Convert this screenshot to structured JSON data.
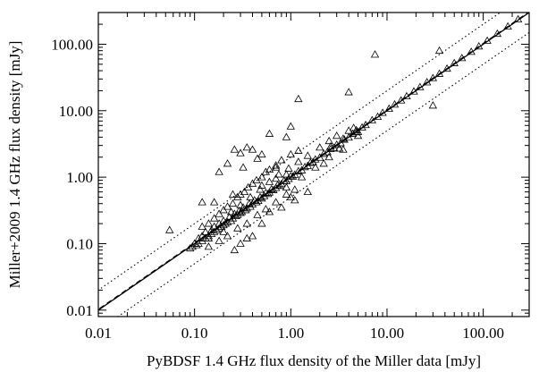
{
  "chart_data": {
    "type": "scatter",
    "title": "",
    "xlabel": "PyBDSF 1.4 GHz flux density of the Miller data [mJy]",
    "ylabel": "Miller+2009 1.4 GHz flux density [mJy]",
    "xscale": "log",
    "yscale": "log",
    "xlim": [
      0.01,
      300
    ],
    "ylim": [
      0.008,
      300
    ],
    "xticks": [
      0.01,
      0.1,
      1,
      10,
      100
    ],
    "xtick_labels": [
      "0.01",
      "0.10",
      "1.00",
      "10.00",
      "100.00"
    ],
    "yticks": [
      0.01,
      0.1,
      1,
      10,
      100
    ],
    "ytick_labels": [
      "0.01",
      "0.10",
      "1.00",
      "10.00",
      "100.00"
    ],
    "grid": false,
    "marker": "open-triangle",
    "reference_lines": [
      {
        "style": "solid",
        "relation": "y = x"
      },
      {
        "style": "dashed",
        "relation": "y = 1.03x"
      },
      {
        "style": "dotted",
        "relation": "y = 2x"
      },
      {
        "style": "dotted",
        "relation": "y = x/2"
      }
    ],
    "series": [
      {
        "values": [
          [
            0.055,
            0.16
          ],
          [
            0.12,
            0.42
          ],
          [
            0.09,
            0.085
          ],
          [
            0.095,
            0.09
          ],
          [
            0.1,
            0.1
          ],
          [
            0.105,
            0.095
          ],
          [
            0.11,
            0.12
          ],
          [
            0.11,
            0.1
          ],
          [
            0.12,
            0.11
          ],
          [
            0.12,
            0.13
          ],
          [
            0.13,
            0.12
          ],
          [
            0.13,
            0.15
          ],
          [
            0.14,
            0.13
          ],
          [
            0.14,
            0.12
          ],
          [
            0.15,
            0.16
          ],
          [
            0.15,
            0.14
          ],
          [
            0.16,
            0.15
          ],
          [
            0.16,
            0.18
          ],
          [
            0.17,
            0.16
          ],
          [
            0.18,
            0.17
          ],
          [
            0.18,
            0.2
          ],
          [
            0.19,
            0.18
          ],
          [
            0.2,
            0.19
          ],
          [
            0.2,
            0.22
          ],
          [
            0.21,
            0.2
          ],
          [
            0.22,
            0.21
          ],
          [
            0.23,
            0.25
          ],
          [
            0.24,
            0.22
          ],
          [
            0.25,
            0.24
          ],
          [
            0.26,
            0.28
          ],
          [
            0.27,
            0.26
          ],
          [
            0.28,
            0.27
          ],
          [
            0.29,
            0.31
          ],
          [
            0.3,
            0.29
          ],
          [
            0.31,
            0.3
          ],
          [
            0.32,
            0.35
          ],
          [
            0.34,
            0.32
          ],
          [
            0.35,
            0.34
          ],
          [
            0.37,
            0.4
          ],
          [
            0.38,
            0.36
          ],
          [
            0.4,
            0.39
          ],
          [
            0.42,
            0.45
          ],
          [
            0.44,
            0.42
          ],
          [
            0.46,
            0.44
          ],
          [
            0.48,
            0.5
          ],
          [
            0.5,
            0.48
          ],
          [
            0.53,
            0.52
          ],
          [
            0.55,
            0.58
          ],
          [
            0.58,
            0.56
          ],
          [
            0.6,
            0.59
          ],
          [
            0.63,
            0.66
          ],
          [
            0.66,
            0.64
          ],
          [
            0.7,
            0.69
          ],
          [
            0.73,
            0.76
          ],
          [
            0.77,
            0.74
          ],
          [
            0.8,
            0.79
          ],
          [
            0.85,
            0.88
          ],
          [
            0.9,
            0.87
          ],
          [
            0.95,
            0.94
          ],
          [
            1.0,
            1.04
          ],
          [
            1.05,
            1.02
          ],
          [
            1.1,
            1.09
          ],
          [
            1.2,
            1.23
          ],
          [
            1.3,
            1.27
          ],
          [
            1.4,
            1.42
          ],
          [
            1.5,
            1.48
          ],
          [
            1.6,
            1.65
          ],
          [
            1.7,
            1.68
          ],
          [
            1.8,
            1.85
          ],
          [
            2.0,
            1.97
          ],
          [
            2.2,
            2.25
          ],
          [
            2.4,
            2.38
          ],
          [
            2.6,
            2.66
          ],
          [
            2.8,
            2.76
          ],
          [
            3.0,
            3.08
          ],
          [
            3.3,
            3.25
          ],
          [
            3.6,
            3.68
          ],
          [
            4.0,
            3.95
          ],
          [
            4.4,
            4.5
          ],
          [
            4.8,
            4.75
          ],
          [
            5.5,
            5.6
          ],
          [
            6.0,
            6.1
          ],
          [
            7.0,
            7.2
          ],
          [
            8.0,
            8.1
          ],
          [
            9.0,
            9.3
          ],
          [
            10.5,
            10.7
          ],
          [
            12.0,
            12.4
          ],
          [
            14.0,
            14.3
          ],
          [
            16.0,
            16.5
          ],
          [
            19.0,
            19.5
          ],
          [
            22.0,
            22.6
          ],
          [
            26.0,
            26.8
          ],
          [
            30.0,
            31.0
          ],
          [
            35.0,
            36.0
          ],
          [
            42.0,
            43.0
          ],
          [
            50.0,
            52.0
          ],
          [
            60.0,
            62.0
          ],
          [
            75.0,
            77.0
          ],
          [
            90.0,
            93.0
          ],
          [
            110.0,
            113.0
          ],
          [
            140.0,
            144.0
          ],
          [
            180.0,
            185.0
          ],
          [
            230.0,
            237.0
          ],
          [
            0.12,
            0.18
          ],
          [
            0.14,
            0.2
          ],
          [
            0.16,
            0.24
          ],
          [
            0.18,
            0.28
          ],
          [
            0.2,
            0.32
          ],
          [
            0.22,
            0.36
          ],
          [
            0.25,
            0.4
          ],
          [
            0.28,
            0.5
          ],
          [
            0.3,
            0.55
          ],
          [
            0.33,
            0.6
          ],
          [
            0.36,
            0.7
          ],
          [
            0.4,
            0.8
          ],
          [
            0.44,
            0.9
          ],
          [
            0.5,
            1.0
          ],
          [
            0.55,
            1.2
          ],
          [
            0.6,
            1.3
          ],
          [
            0.7,
            1.5
          ],
          [
            0.8,
            1.8
          ],
          [
            1.0,
            2.2
          ],
          [
            1.2,
            2.5
          ],
          [
            0.3,
            2.3
          ],
          [
            0.35,
            2.8
          ],
          [
            0.45,
            1.9
          ],
          [
            0.26,
            2.6
          ],
          [
            0.22,
            1.6
          ],
          [
            0.18,
            1.2
          ],
          [
            0.32,
            1.4
          ],
          [
            0.4,
            2.6
          ],
          [
            0.5,
            2.2
          ],
          [
            0.7,
            1.4
          ],
          [
            0.14,
            0.09
          ],
          [
            0.18,
            0.11
          ],
          [
            0.22,
            0.13
          ],
          [
            0.28,
            0.17
          ],
          [
            0.35,
            0.2
          ],
          [
            0.45,
            0.27
          ],
          [
            0.55,
            0.33
          ],
          [
            0.7,
            0.42
          ],
          [
            0.9,
            0.55
          ],
          [
            1.1,
            0.65
          ],
          [
            0.4,
            0.13
          ],
          [
            0.3,
            0.1
          ],
          [
            0.6,
            0.3
          ],
          [
            0.8,
            0.35
          ],
          [
            1.0,
            0.5
          ],
          [
            1.1,
            0.45
          ],
          [
            1.5,
            0.6
          ],
          [
            0.5,
            0.2
          ],
          [
            0.26,
            0.08
          ],
          [
            0.35,
            0.12
          ],
          [
            0.2,
            0.15
          ],
          [
            0.24,
            0.3
          ],
          [
            0.3,
            0.38
          ],
          [
            0.38,
            0.5
          ],
          [
            0.48,
            0.65
          ],
          [
            0.6,
            0.85
          ],
          [
            0.75,
            1.1
          ],
          [
            0.95,
            1.35
          ],
          [
            1.2,
            1.7
          ],
          [
            1.5,
            2.1
          ],
          [
            2.0,
            2.8
          ],
          [
            2.5,
            3.5
          ],
          [
            3.0,
            4.2
          ],
          [
            4.0,
            5.0
          ],
          [
            5.0,
            4.2
          ],
          [
            3.5,
            2.6
          ],
          [
            2.5,
            2.0
          ],
          [
            1.8,
            1.4
          ],
          [
            1.3,
            1.0
          ],
          [
            0.9,
            0.7
          ],
          [
            1.0,
            5.8
          ],
          [
            0.9,
            1.1
          ],
          [
            4.5,
            5.5
          ],
          [
            5.0,
            4.8
          ],
          [
            4.8,
            5.1
          ],
          [
            7.5,
            70.0
          ],
          [
            4.0,
            19.0
          ],
          [
            35.0,
            80.0
          ],
          [
            30.0,
            12.0
          ],
          [
            3.5,
            3.8
          ],
          [
            1.2,
            15.0
          ],
          [
            0.9,
            4.0
          ],
          [
            0.6,
            4.5
          ],
          [
            0.25,
            0.55
          ],
          [
            0.16,
            0.42
          ],
          [
            0.5,
            0.75
          ],
          [
            0.7,
            0.95
          ],
          [
            2.2,
            1.6
          ],
          [
            3.2,
            2.7
          ],
          [
            2.6,
            2.9
          ]
        ]
      }
    ]
  }
}
